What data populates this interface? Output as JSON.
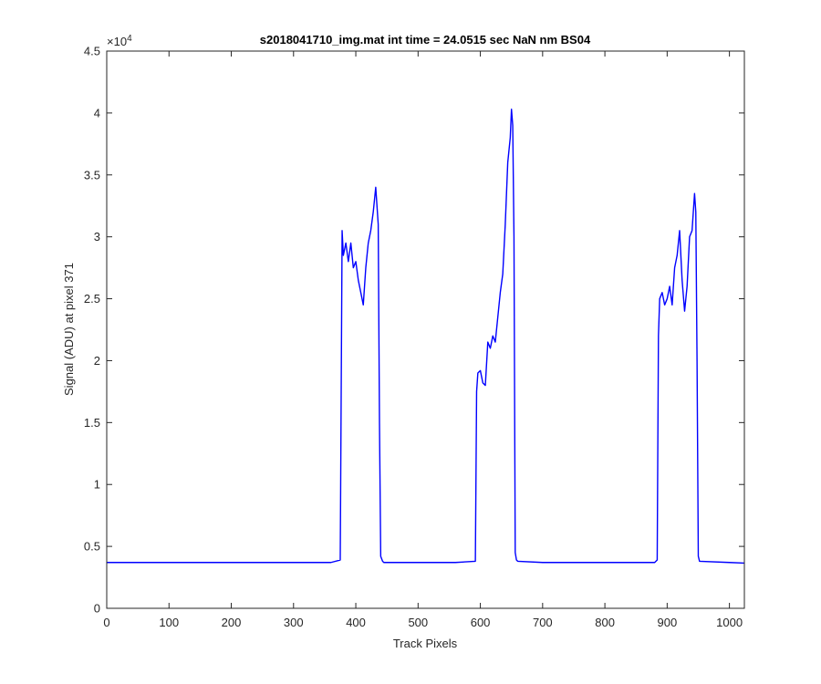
{
  "chart_data": {
    "type": "line",
    "title": "s2018041710_img.mat int time = 24.0515 sec  NaN nm BS04",
    "xlabel": "Track Pixels",
    "ylabel": "Signal (ADU) at pixel 371",
    "xlim": [
      0,
      1024
    ],
    "ylim": [
      0,
      45000
    ],
    "xticks": [
      0,
      100,
      200,
      300,
      400,
      500,
      600,
      700,
      800,
      900,
      1000
    ],
    "xtick_labels": [
      "0",
      "100",
      "200",
      "300",
      "400",
      "500",
      "600",
      "700",
      "800",
      "900",
      "1000"
    ],
    "yticks": [
      0,
      5000,
      10000,
      15000,
      20000,
      25000,
      30000,
      35000,
      40000,
      45000
    ],
    "ytick_labels": [
      "0",
      "0.5",
      "1",
      "1.5",
      "2",
      "2.5",
      "3",
      "3.5",
      "4",
      "4.5"
    ],
    "y_exponent_base": "×10",
    "y_exponent_power": "4",
    "grid": false,
    "legend": "none",
    "series_color": "#0000ff",
    "series": [
      {
        "x": [
          0,
          100,
          200,
          300,
          360,
          375,
          378,
          380,
          384,
          388,
          392,
          396,
          400,
          404,
          408,
          412,
          416,
          420,
          424,
          428,
          432,
          436,
          438,
          440,
          443,
          445,
          460,
          500,
          560,
          592,
          594,
          596,
          600,
          604,
          608,
          612,
          616,
          620,
          624,
          628,
          632,
          636,
          640,
          644,
          648,
          650,
          652,
          654,
          656,
          658,
          660,
          700,
          800,
          880,
          884,
          886,
          888,
          892,
          896,
          900,
          904,
          908,
          912,
          916,
          920,
          924,
          928,
          932,
          936,
          940,
          944,
          946,
          948,
          950,
          952,
          1000,
          1024
        ],
        "y": [
          3700,
          3700,
          3700,
          3700,
          3700,
          3900,
          30500,
          28500,
          29500,
          28000,
          29500,
          27500,
          28000,
          26500,
          25500,
          24500,
          27500,
          29500,
          30500,
          32000,
          34000,
          31000,
          15000,
          4200,
          3800,
          3700,
          3700,
          3700,
          3700,
          3800,
          17500,
          19000,
          19200,
          18200,
          18000,
          21500,
          21000,
          22000,
          21500,
          23500,
          25500,
          27000,
          31000,
          36000,
          38000,
          40300,
          39000,
          30000,
          4500,
          3900,
          3800,
          3700,
          3700,
          3700,
          3900,
          22000,
          25000,
          25500,
          24500,
          25000,
          26000,
          24500,
          27500,
          28500,
          30500,
          26500,
          24000,
          26000,
          30000,
          30500,
          33500,
          32000,
          20000,
          4200,
          3800,
          3700,
          3650
        ]
      }
    ]
  }
}
